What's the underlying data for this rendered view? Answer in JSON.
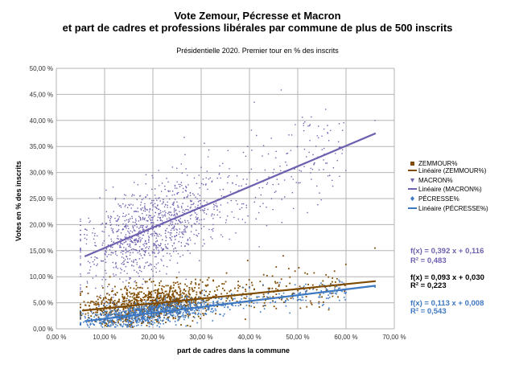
{
  "chart_data": {
    "type": "scatter",
    "title": "Vote Zemour, Pécresse et Macron",
    "title_line2": "et part de cadres et professions libérales par commune de plus de 500 inscrits",
    "subtitle": "Présidentielle 2020. Premier tour en % des inscrits",
    "xlabel": "part de cadres dans la commune",
    "ylabel": "Votes en % des inscrits",
    "xlim": [
      0,
      70
    ],
    "ylim": [
      0,
      50
    ],
    "x_ticks": [
      0,
      10,
      20,
      30,
      40,
      50,
      60,
      70
    ],
    "y_ticks": [
      0,
      5,
      10,
      15,
      20,
      25,
      30,
      35,
      40,
      45,
      50
    ],
    "x_tick_labels": [
      "0,00 %",
      "10,00 %",
      "20,00 %",
      "30,00 %",
      "40,00 %",
      "50,00 %",
      "60,00 %",
      "70,00 %"
    ],
    "y_tick_labels": [
      "0,00 %",
      "5,00 %",
      "10,00 %",
      "15,00 %",
      "20,00 %",
      "25,00 %",
      "30,00 %",
      "35,00 %",
      "40,00 %",
      "45,00 %",
      "50,00 %"
    ],
    "grid": true,
    "legend_position": "right",
    "series": [
      {
        "name": "ZEMMOUR%",
        "marker": "square",
        "color": "#7f4b00",
        "x_range": [
          5,
          66
        ],
        "trend_label": "Linéaire (ZEMMOUR%)",
        "trend": {
          "slope": 0.093,
          "intercept": 0.03,
          "r2": 0.223,
          "x_from": 5.5,
          "x_to": 66
        },
        "equation": "f(x) = 0,093 x + 0,030",
        "r2_label": "R² = 0,223",
        "equation_color": "#000000",
        "sample_points": [
          [
            16,
            4.5
          ],
          [
            18,
            6
          ],
          [
            20,
            5
          ],
          [
            22,
            7
          ],
          [
            25,
            4
          ],
          [
            28,
            9
          ],
          [
            33,
            6.5
          ],
          [
            40,
            8
          ],
          [
            47,
            14
          ],
          [
            66,
            15.5
          ]
        ]
      },
      {
        "name": "MACRON%",
        "marker": "triangle",
        "color": "#7060b0",
        "x_range": [
          5,
          66
        ],
        "trend_label": "Linéaire (MACRON%)",
        "trend": {
          "slope": 0.392,
          "intercept": 0.116,
          "r2": 0.483,
          "x_from": 6,
          "x_to": 66
        },
        "equation": "f(x) = 0,392 x + 0,116",
        "r2_label": "R² = 0,483",
        "equation_color": "#7060b0",
        "sample_points": [
          [
            8,
            16
          ],
          [
            15,
            22
          ],
          [
            18,
            25
          ],
          [
            20,
            29
          ],
          [
            22,
            20
          ],
          [
            30,
            31
          ],
          [
            40,
            30
          ],
          [
            41,
            43.5
          ],
          [
            55,
            37
          ],
          [
            66,
            40
          ]
        ]
      },
      {
        "name": "PÉCRESSE%",
        "marker": "diamond",
        "color": "#3d78c2",
        "x_range": [
          5,
          66
        ],
        "trend_label": "Linéaire (PÉCRESSE%)",
        "trend": {
          "slope": 0.113,
          "intercept": 0.008,
          "r2": 0.543,
          "x_from": 6,
          "x_to": 66
        },
        "equation": "f(x) = 0,113 x + 0,008",
        "r2_label": "R² = 0,543",
        "equation_color": "#3d78c2",
        "sample_points": [
          [
            10,
            2
          ],
          [
            15,
            2.5
          ],
          [
            20,
            3
          ],
          [
            25,
            3.5
          ],
          [
            30,
            4
          ],
          [
            35,
            4.5
          ],
          [
            40,
            5
          ],
          [
            50,
            6
          ],
          [
            60,
            7
          ],
          [
            66,
            8
          ]
        ]
      }
    ]
  }
}
